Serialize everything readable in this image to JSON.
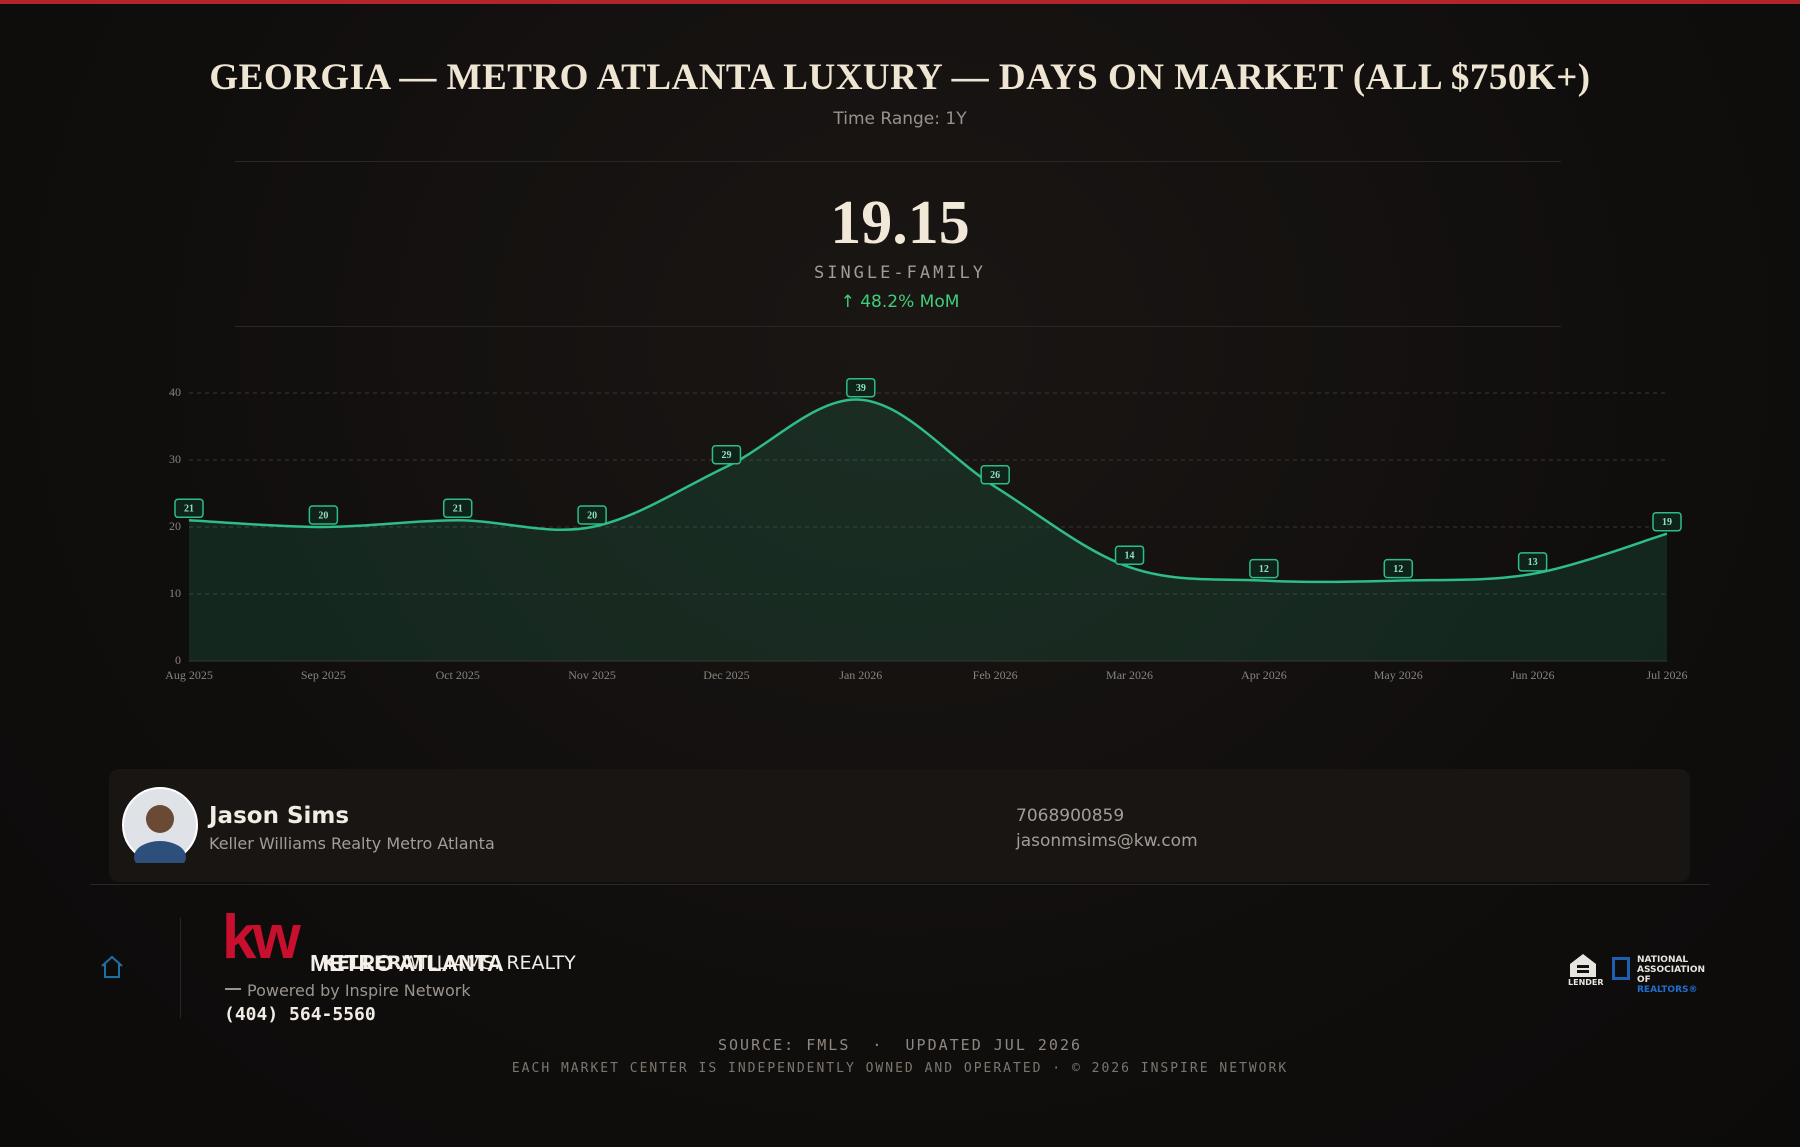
{
  "header": {
    "title": "GEORGIA — METRO ATLANTA LUXURY — DAYS ON MARKET (ALL $750K+)",
    "subtitle": "Time Range: 1Y"
  },
  "headline": {
    "value": 19.15,
    "label": "SINGLE-FAMILY",
    "change": "↑ 48.2% MoM"
  },
  "chart_data": {
    "type": "area",
    "categories": [
      "Aug 2025",
      "Sep 2025",
      "Oct 2025",
      "Nov 2025",
      "Dec 2025",
      "Jan 2026",
      "Feb 2026",
      "Mar 2026",
      "Apr 2026",
      "May 2026",
      "Jun 2026",
      "Jul 2026"
    ],
    "values": [
      21,
      20,
      21,
      20,
      29,
      39,
      26,
      14,
      12,
      12,
      13,
      19
    ],
    "color": "#2ebd86",
    "ylim": [
      0,
      40
    ],
    "yticks": [
      0,
      10,
      20,
      30,
      40
    ],
    "grid": true
  },
  "agent": {
    "name": "Jason Sims",
    "company": "Keller Williams Realty Metro Atlanta",
    "phone": "7068900859",
    "email": "jasonmsims@kw.com"
  },
  "footer": {
    "logo_mark": "kw",
    "brand_a": "KELLER",
    "brand_b": "WILLIAMS. REALTY",
    "brand_c": "METRO ATLANTA",
    "powered": "Powered by Inspire Network",
    "phone": "(404) 564-5560",
    "ehl": "LENDER",
    "nar": "NATIONAL ASSOCIATION OF",
    "nar_b": "REALTORS®",
    "source": "SOURCE: FMLS  ·  UPDATED JUL 2026",
    "disclaimer": "EACH MARKET CENTER IS INDEPENDENTLY OWNED AND OPERATED · © 2026 INSPIRE NETWORK"
  }
}
